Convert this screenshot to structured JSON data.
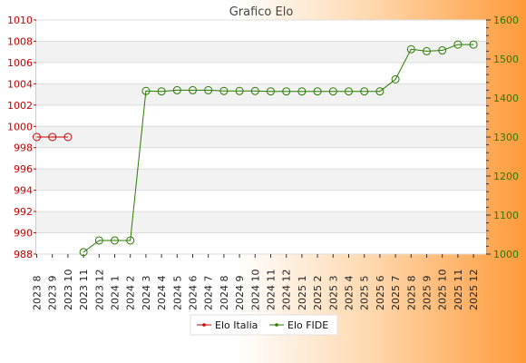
{
  "chart_data": {
    "type": "line",
    "title": "Grafico Elo",
    "categories": [
      "2023 8",
      "2023 9",
      "2023 10",
      "2023 11",
      "2023 12",
      "2024 1",
      "2024 2",
      "2024 3",
      "2024 4",
      "2024 5",
      "2024 6",
      "2024 7",
      "2024 8",
      "2024 9",
      "2024 10",
      "2024 11",
      "2024 12",
      "2025 1",
      "2025 2",
      "2025 3",
      "2025 4",
      "2025 5",
      "2025 6",
      "2025 7",
      "2025 8",
      "2025 9",
      "2025 10",
      "2025 11",
      "2025 12"
    ],
    "y_left": {
      "ylim": [
        988,
        1010
      ],
      "ticks": [
        988,
        990,
        992,
        994,
        996,
        998,
        1000,
        1002,
        1004,
        1006,
        1008,
        1010
      ],
      "color": "#cc0000"
    },
    "y_right": {
      "ylim": [
        1000,
        1600
      ],
      "ticks": [
        1000,
        1100,
        1200,
        1300,
        1400,
        1500,
        1600
      ],
      "color": "#2a7a00"
    },
    "grid": true,
    "legend_position": "bottom-center",
    "series": [
      {
        "name": "Elo Italia",
        "axis": "left",
        "color": "#cc0000",
        "values": [
          999,
          999,
          999,
          null,
          null,
          null,
          null,
          null,
          null,
          null,
          null,
          null,
          null,
          null,
          null,
          null,
          null,
          null,
          null,
          null,
          null,
          null,
          null,
          null,
          null,
          null,
          null,
          null,
          null
        ]
      },
      {
        "name": "Elo FIDE",
        "axis": "right",
        "color": "#2a7a00",
        "values": [
          null,
          null,
          null,
          1005,
          1035,
          1035,
          1035,
          1418,
          1417,
          1420,
          1420,
          1420,
          1418,
          1418,
          1418,
          1417,
          1417,
          1417,
          1417,
          1417,
          1417,
          1417,
          1417,
          1448,
          1525,
          1520,
          1522,
          1537,
          1537
        ]
      }
    ]
  }
}
